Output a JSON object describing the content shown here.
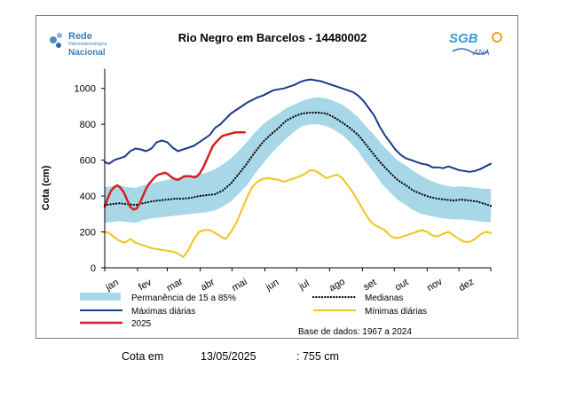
{
  "logo": {
    "rede_line1": "Rede",
    "rede_line2": "Hidrometeorológica",
    "rede_line3": "Nacional",
    "sgb_text": "SGB",
    "ana_text": "ANA"
  },
  "chart_data": {
    "type": "line",
    "title": "Rio Negro em Barcelos - 14480002",
    "ylabel": "Cota (cm)",
    "xlabel": "",
    "ylim": [
      0,
      1100
    ],
    "yticks": [
      0,
      200,
      400,
      600,
      800,
      1000
    ],
    "months": [
      "jan",
      "fev",
      "mar",
      "abr",
      "mai",
      "jun",
      "jul",
      "ago",
      "set",
      "out",
      "nov",
      "dez"
    ],
    "grid": false,
    "legend_position": "bottom",
    "band": {
      "name": "Permanência de 15 a 85%",
      "color": "#a8d8e8",
      "x": [
        1,
        8,
        15,
        22,
        30,
        37,
        45,
        52,
        60,
        67,
        75,
        82,
        90,
        97,
        105,
        112,
        120,
        127,
        135,
        142,
        150,
        157,
        165,
        172,
        180,
        187,
        195,
        202,
        210,
        217,
        225,
        232,
        240,
        247,
        255,
        262,
        270,
        277,
        285,
        292,
        300,
        307,
        315,
        322,
        330,
        337,
        345,
        352,
        360,
        365
      ],
      "upper": [
        450,
        455,
        460,
        450,
        445,
        460,
        470,
        480,
        490,
        500,
        505,
        510,
        520,
        530,
        550,
        575,
        610,
        650,
        700,
        750,
        800,
        830,
        860,
        890,
        910,
        930,
        945,
        950,
        945,
        930,
        910,
        880,
        840,
        790,
        740,
        690,
        640,
        600,
        570,
        540,
        510,
        490,
        470,
        460,
        450,
        455,
        450,
        445,
        440,
        440
      ],
      "lower": [
        250,
        255,
        260,
        255,
        250,
        265,
        275,
        280,
        285,
        290,
        295,
        300,
        305,
        310,
        320,
        340,
        370,
        410,
        460,
        520,
        580,
        630,
        680,
        720,
        760,
        790,
        800,
        800,
        790,
        770,
        740,
        700,
        650,
        590,
        530,
        470,
        420,
        380,
        350,
        320,
        300,
        290,
        280,
        275,
        270,
        270,
        265,
        260,
        255,
        255
      ]
    },
    "series": [
      {
        "name": "Medianas",
        "color": "#000000",
        "style": "dotted",
        "x": [
          1,
          8,
          15,
          22,
          30,
          37,
          45,
          52,
          60,
          67,
          75,
          82,
          90,
          97,
          105,
          112,
          120,
          127,
          135,
          142,
          150,
          157,
          165,
          172,
          180,
          187,
          195,
          202,
          210,
          217,
          225,
          232,
          240,
          247,
          255,
          262,
          270,
          277,
          285,
          292,
          300,
          307,
          315,
          322,
          330,
          337,
          345,
          352,
          360,
          365
        ],
        "y": [
          350,
          355,
          360,
          355,
          350,
          360,
          370,
          375,
          380,
          385,
          385,
          390,
          400,
          405,
          410,
          430,
          470,
          520,
          580,
          640,
          700,
          740,
          780,
          820,
          845,
          860,
          865,
          865,
          860,
          840,
          810,
          780,
          740,
          690,
          630,
          580,
          530,
          490,
          460,
          430,
          410,
          395,
          385,
          380,
          375,
          380,
          375,
          370,
          355,
          345
        ]
      },
      {
        "name": "Máximas diárias",
        "color": "#1a3a8a",
        "style": "solid",
        "x": [
          1,
          5,
          10,
          15,
          20,
          25,
          30,
          35,
          40,
          45,
          50,
          55,
          60,
          65,
          70,
          75,
          80,
          85,
          90,
          95,
          100,
          105,
          110,
          115,
          120,
          125,
          130,
          135,
          140,
          145,
          150,
          155,
          160,
          165,
          170,
          175,
          180,
          185,
          190,
          195,
          200,
          205,
          210,
          215,
          220,
          225,
          230,
          235,
          240,
          245,
          250,
          255,
          260,
          265,
          270,
          275,
          280,
          285,
          290,
          295,
          300,
          305,
          310,
          315,
          320,
          325,
          330,
          335,
          340,
          345,
          350,
          355,
          360,
          365
        ],
        "y": [
          590,
          580,
          600,
          610,
          620,
          650,
          665,
          660,
          650,
          665,
          700,
          710,
          700,
          670,
          650,
          660,
          670,
          680,
          700,
          720,
          740,
          780,
          800,
          830,
          860,
          880,
          900,
          920,
          935,
          950,
          960,
          975,
          990,
          995,
          1000,
          1010,
          1020,
          1035,
          1045,
          1050,
          1045,
          1040,
          1030,
          1020,
          1010,
          1000,
          990,
          980,
          960,
          930,
          890,
          850,
          790,
          740,
          700,
          660,
          630,
          610,
          600,
          590,
          580,
          575,
          560,
          560,
          555,
          565,
          555,
          545,
          540,
          535,
          540,
          550,
          565,
          580
        ]
      },
      {
        "name": "Mínimas diárias",
        "color": "#f0c419",
        "style": "solid",
        "x": [
          1,
          5,
          10,
          15,
          20,
          25,
          30,
          35,
          40,
          45,
          50,
          55,
          60,
          65,
          70,
          75,
          80,
          85,
          90,
          95,
          100,
          105,
          110,
          115,
          120,
          125,
          130,
          135,
          140,
          145,
          150,
          155,
          160,
          165,
          170,
          175,
          180,
          185,
          190,
          195,
          200,
          205,
          210,
          215,
          220,
          225,
          230,
          235,
          240,
          245,
          250,
          255,
          260,
          265,
          270,
          275,
          280,
          285,
          290,
          295,
          300,
          305,
          310,
          315,
          320,
          325,
          330,
          335,
          340,
          345,
          350,
          355,
          360,
          365
        ],
        "y": [
          200,
          195,
          170,
          150,
          140,
          160,
          140,
          130,
          120,
          110,
          105,
          100,
          95,
          90,
          80,
          60,
          100,
          160,
          200,
          210,
          210,
          195,
          175,
          160,
          200,
          250,
          320,
          390,
          450,
          480,
          495,
          500,
          495,
          490,
          480,
          490,
          500,
          510,
          525,
          545,
          540,
          520,
          500,
          510,
          520,
          500,
          460,
          420,
          370,
          320,
          270,
          240,
          225,
          210,
          180,
          165,
          170,
          180,
          190,
          200,
          210,
          200,
          180,
          175,
          190,
          200,
          180,
          160,
          145,
          145,
          160,
          185,
          200,
          195
        ]
      },
      {
        "name": "2025",
        "color": "#d62020",
        "style": "solid",
        "x": [
          1,
          4,
          7,
          10,
          13,
          16,
          19,
          22,
          25,
          28,
          31,
          34,
          37,
          40,
          43,
          46,
          49,
          52,
          55,
          58,
          61,
          64,
          67,
          70,
          73,
          76,
          79,
          82,
          85,
          88,
          91,
          94,
          97,
          100,
          103,
          106,
          109,
          112,
          115,
          118,
          121,
          124,
          127,
          130,
          133
        ],
        "y": [
          340,
          390,
          430,
          450,
          460,
          445,
          420,
          380,
          340,
          325,
          330,
          360,
          400,
          440,
          470,
          490,
          510,
          520,
          525,
          530,
          520,
          505,
          495,
          490,
          500,
          510,
          510,
          510,
          505,
          510,
          530,
          560,
          600,
          640,
          680,
          700,
          720,
          735,
          740,
          745,
          750,
          755,
          755,
          755,
          755
        ]
      }
    ],
    "base_text": "Base de dados: 1967 a 2024"
  },
  "footer": {
    "label": "Cota em",
    "date": "13/05/2025",
    "value": ": 755 cm"
  }
}
